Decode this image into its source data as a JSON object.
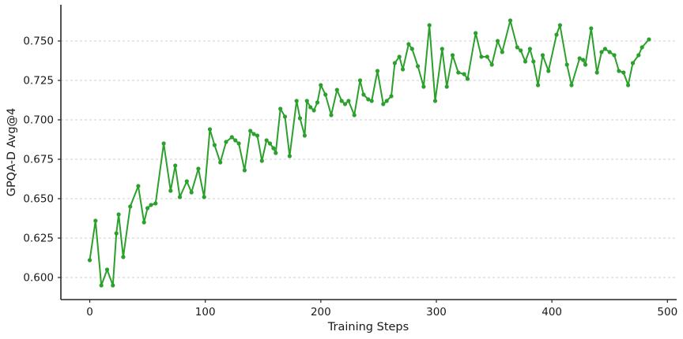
{
  "chart_data": {
    "type": "line",
    "title": "",
    "xlabel": "Training Steps",
    "ylabel": "GPQA-D Avg@4",
    "legend": "none",
    "grid": "horizontal dashed lines at each y tick",
    "x_ticks": [
      0,
      100,
      200,
      300,
      400,
      500
    ],
    "y_ticks": [
      0.6,
      0.625,
      0.65,
      0.675,
      0.7,
      0.725,
      0.75
    ],
    "xlim": [
      -25,
      508
    ],
    "ylim": [
      0.586,
      0.773
    ],
    "line_color": "#2ca02c",
    "marker": "circle",
    "series": [
      {
        "name": "GPQA-D Avg@4",
        "x": [
          0,
          5,
          10,
          15,
          20,
          23,
          25,
          29,
          35,
          42,
          47,
          50,
          53,
          57,
          64,
          70,
          74,
          78,
          84,
          88,
          94,
          99,
          104,
          108,
          113,
          118,
          123,
          126,
          129,
          134,
          139,
          142,
          145,
          149,
          153,
          156,
          159,
          161,
          165,
          169,
          173,
          179,
          182,
          186,
          188,
          191,
          194,
          197,
          200,
          204,
          209,
          214,
          218,
          221,
          224,
          229,
          234,
          237,
          241,
          244,
          249,
          254,
          257,
          261,
          264,
          268,
          271,
          276,
          279,
          284,
          289,
          294,
          299,
          305,
          309,
          314,
          319,
          324,
          327,
          334,
          339,
          344,
          348,
          353,
          357,
          364,
          370,
          373,
          377,
          381,
          384,
          388,
          392,
          397,
          404,
          407,
          413,
          417,
          424,
          427,
          429,
          434,
          439,
          443,
          446,
          450,
          454,
          458,
          462,
          466,
          470,
          475,
          478,
          484
        ],
        "y": [
          0.611,
          0.636,
          0.595,
          0.605,
          0.595,
          0.628,
          0.64,
          0.613,
          0.645,
          0.658,
          0.635,
          0.644,
          0.646,
          0.647,
          0.685,
          0.655,
          0.671,
          0.651,
          0.661,
          0.654,
          0.669,
          0.651,
          0.694,
          0.684,
          0.673,
          0.686,
          0.689,
          0.687,
          0.685,
          0.668,
          0.693,
          0.691,
          0.69,
          0.674,
          0.687,
          0.685,
          0.682,
          0.679,
          0.707,
          0.702,
          0.677,
          0.712,
          0.701,
          0.69,
          0.712,
          0.708,
          0.706,
          0.711,
          0.722,
          0.716,
          0.703,
          0.719,
          0.712,
          0.71,
          0.712,
          0.703,
          0.725,
          0.716,
          0.713,
          0.712,
          0.731,
          0.71,
          0.712,
          0.715,
          0.736,
          0.74,
          0.732,
          0.748,
          0.745,
          0.734,
          0.721,
          0.76,
          0.712,
          0.745,
          0.721,
          0.741,
          0.73,
          0.729,
          0.726,
          0.755,
          0.74,
          0.74,
          0.735,
          0.75,
          0.743,
          0.763,
          0.746,
          0.744,
          0.737,
          0.745,
          0.737,
          0.722,
          0.741,
          0.731,
          0.754,
          0.76,
          0.735,
          0.722,
          0.739,
          0.738,
          0.735,
          0.758,
          0.73,
          0.743,
          0.745,
          0.743,
          0.741,
          0.731,
          0.73,
          0.722,
          0.736,
          0.741,
          0.746,
          0.751
        ]
      }
    ]
  },
  "style": {
    "grid_color": "#cfcfcf",
    "spine_color": "#262626",
    "text_color": "#1a1a1a",
    "background": "#ffffff"
  }
}
